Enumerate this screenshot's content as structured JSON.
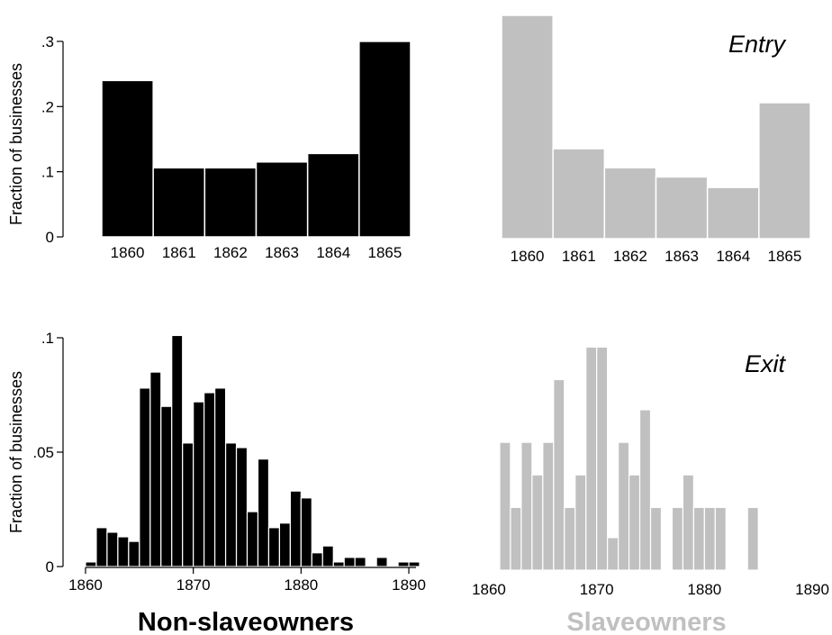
{
  "colors": {
    "non_slaveowners": "#000000",
    "slaveowners": "#c0c0c0",
    "background": "#ffffff"
  },
  "group_labels": {
    "left": "Non-slaveowners",
    "right": "Slaveowners"
  },
  "chart_data": [
    {
      "type": "bar",
      "panel": "entry-non-slaveowners",
      "label": "",
      "ylabel": "Fraction of businesses",
      "ylim": [
        0,
        0.34
      ],
      "yticks": [
        0,
        0.1,
        0.2,
        0.3
      ],
      "ytick_labels": [
        "0",
        ".1",
        ".2",
        ".3"
      ],
      "categories": [
        "1860",
        "1861",
        "1862",
        "1863",
        "1864",
        "1865"
      ],
      "values": [
        0.24,
        0.106,
        0.106,
        0.115,
        0.128,
        0.3
      ],
      "color": "#000000"
    },
    {
      "type": "bar",
      "panel": "entry-slaveowners",
      "label": "Entry",
      "ylabel": "",
      "ylim": [
        0,
        0.34
      ],
      "categories": [
        "1860",
        "1861",
        "1862",
        "1863",
        "1864",
        "1865"
      ],
      "values": [
        0.34,
        0.137,
        0.108,
        0.094,
        0.078,
        0.207
      ],
      "color": "#c0c0c0"
    },
    {
      "type": "bar",
      "panel": "exit-non-slaveowners",
      "label": "",
      "ylabel": "Fraction of businesses",
      "ylim": [
        0,
        0.1
      ],
      "yticks": [
        0,
        0.05,
        0.1
      ],
      "ytick_labels": [
        "0",
        ".05",
        ".1"
      ],
      "xlim": [
        1859.5,
        1891
      ],
      "xticks": [
        1860,
        1870,
        1880,
        1890
      ],
      "xtick_labels": [
        "1860",
        "1870",
        "1880",
        "1890"
      ],
      "x": [
        1860,
        1861,
        1862,
        1863,
        1864,
        1865,
        1866,
        1867,
        1868,
        1869,
        1870,
        1871,
        1872,
        1873,
        1874,
        1875,
        1876,
        1877,
        1878,
        1879,
        1880,
        1881,
        1882,
        1883,
        1884,
        1885,
        1887,
        1889,
        1890
      ],
      "values": [
        0.002,
        0.017,
        0.015,
        0.013,
        0.011,
        0.078,
        0.085,
        0.07,
        0.101,
        0.054,
        0.072,
        0.076,
        0.078,
        0.054,
        0.052,
        0.024,
        0.047,
        0.017,
        0.019,
        0.033,
        0.03,
        0.006,
        0.009,
        0.002,
        0.004,
        0.004,
        0.004,
        0.002,
        0.002
      ],
      "color": "#000000"
    },
    {
      "type": "bar",
      "panel": "exit-slaveowners",
      "label": "Exit",
      "ylabel": "",
      "ylim": [
        0,
        0.1
      ],
      "xlim": [
        1859.5,
        1891
      ],
      "xticks": [
        1860,
        1870,
        1880,
        1890
      ],
      "xtick_labels": [
        "1860",
        "1870",
        "1880",
        "1890"
      ],
      "x": [
        1861,
        1862,
        1863,
        1864,
        1865,
        1866,
        1867,
        1868,
        1869,
        1870,
        1871,
        1872,
        1873,
        1874,
        1875,
        1877,
        1878,
        1879,
        1880,
        1881,
        1884
      ],
      "values": [
        0.055,
        0.027,
        0.055,
        0.041,
        0.055,
        0.082,
        0.027,
        0.041,
        0.096,
        0.096,
        0.014,
        0.055,
        0.041,
        0.069,
        0.027,
        0.027,
        0.041,
        0.027,
        0.027,
        0.027,
        0.027
      ],
      "color": "#c0c0c0"
    }
  ]
}
